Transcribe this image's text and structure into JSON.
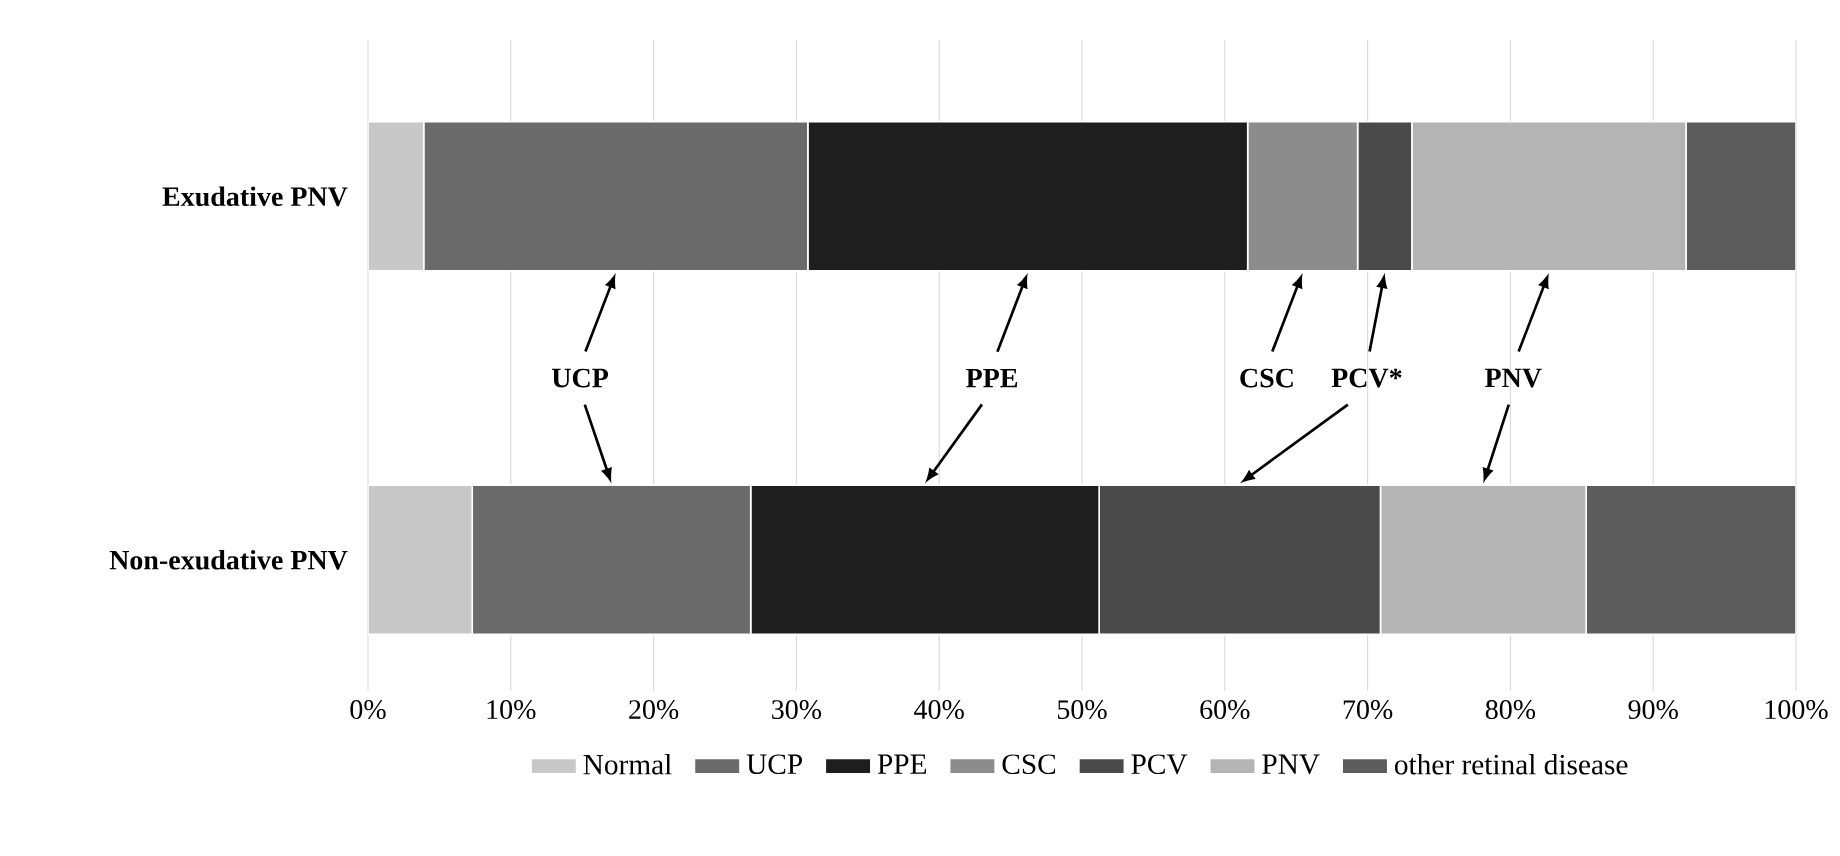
{
  "chart_data": {
    "type": "bar",
    "orientation": "horizontal",
    "stacked": true,
    "categories": [
      "Exudative PNV",
      "Non-exudative PNV"
    ],
    "series": [
      {
        "name": "Normal",
        "color": "#c8c8c8",
        "values": [
          3.9,
          7.3
        ]
      },
      {
        "name": "UCP",
        "color": "#6a6a6a",
        "values": [
          26.9,
          19.5
        ]
      },
      {
        "name": "PPE",
        "color": "#1e1e1e",
        "values": [
          30.8,
          24.4
        ]
      },
      {
        "name": "CSC",
        "color": "#8c8c8c",
        "values": [
          7.7,
          0
        ]
      },
      {
        "name": "PCV",
        "color": "#4a4a4a",
        "values": [
          3.8,
          19.7
        ]
      },
      {
        "name": "PNV",
        "color": "#b4b4b4",
        "values": [
          19.2,
          14.4
        ]
      },
      {
        "name": "other retinal disease",
        "color": "#5c5c5c",
        "values": [
          7.7,
          14.7
        ]
      }
    ],
    "xlim": [
      0,
      100
    ],
    "xticks": [
      {
        "value": 0,
        "label": "0%"
      },
      {
        "value": 10,
        "label": "10%"
      },
      {
        "value": 20,
        "label": "20%"
      },
      {
        "value": 30,
        "label": "30%"
      },
      {
        "value": 40,
        "label": "40%"
      },
      {
        "value": 50,
        "label": "50%"
      },
      {
        "value": 60,
        "label": "60%"
      },
      {
        "value": 70,
        "label": "70%"
      },
      {
        "value": 80,
        "label": "80%"
      },
      {
        "value": 90,
        "label": "90%"
      },
      {
        "value": 100,
        "label": "100%"
      }
    ],
    "grid": "x",
    "legend": "bottom",
    "annotations": [
      "UCP",
      "PPE",
      "CSC",
      "PCV*",
      "PNV"
    ]
  }
}
